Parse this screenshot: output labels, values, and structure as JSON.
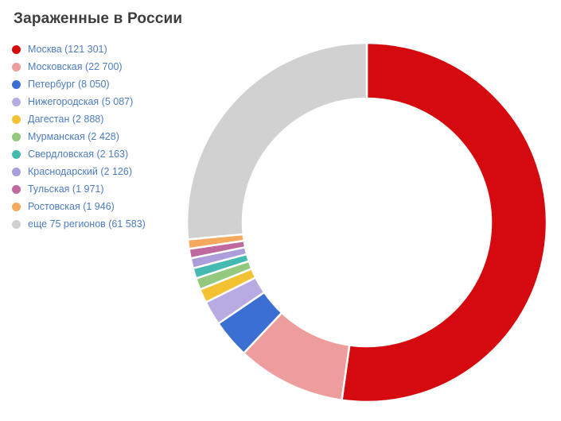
{
  "title": "Зараженные в России",
  "palette": {
    "background": "#ffffff",
    "title_color": "#3d3d3d",
    "legend_text_color": "#4d7cc1",
    "slice_gap_color": "#ffffff"
  },
  "chart_data": {
    "type": "pie",
    "subtype": "donut",
    "title": "Зараженные в России",
    "legend_position": "left",
    "direction": "clockwise",
    "start_angle_deg": 0,
    "total": 232243,
    "segments": [
      {
        "label": "Москва",
        "value": 121301,
        "display": "Москва (121 301)",
        "color": "#d50a0e"
      },
      {
        "label": "Московская",
        "value": 22700,
        "display": "Московская (22 700)",
        "color": "#ed9d9b"
      },
      {
        "label": "Петербург",
        "value": 8050,
        "display": "Петербург (8 050)",
        "color": "#3b70d2"
      },
      {
        "label": "Нижегородская",
        "value": 5087,
        "display": "Нижегородская (5 087)",
        "color": "#b7abe2"
      },
      {
        "label": "Дагестан",
        "value": 2888,
        "display": "Дагестан (2 888)",
        "color": "#f2c233"
      },
      {
        "label": "Мурманская",
        "value": 2428,
        "display": "Мурманская (2 428)",
        "color": "#93c87f"
      },
      {
        "label": "Свердловская",
        "value": 2163,
        "display": "Свердловская (2 163)",
        "color": "#45bab1"
      },
      {
        "label": "Краснодарский",
        "value": 2126,
        "display": "Краснодарский (2 126)",
        "color": "#ab9edb"
      },
      {
        "label": "Тульская",
        "value": 1971,
        "display": "Тульская (1 971)",
        "color": "#c0699e"
      },
      {
        "label": "Ростовская",
        "value": 1946,
        "display": "Ростовская (1 946)",
        "color": "#f5a95f"
      },
      {
        "label": "еще 75 регионов",
        "value": 61583,
        "display": "еще 75 регионов (61 583)",
        "color": "#d1d1d1"
      }
    ]
  }
}
